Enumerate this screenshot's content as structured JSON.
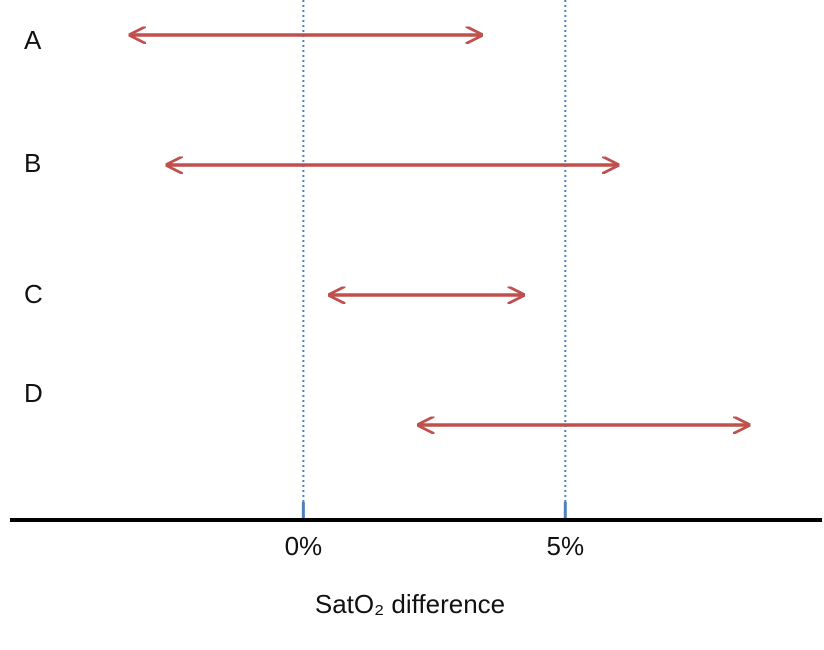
{
  "chart_data": {
    "type": "interval",
    "categories": [
      "A",
      "B",
      "C",
      "D"
    ],
    "lower": [
      -3.3,
      -2.6,
      0.5,
      2.2
    ],
    "upper": [
      3.4,
      6.0,
      4.2,
      8.5
    ],
    "color": "#c0504d",
    "reference_color": "#4f81bd",
    "xlim": [
      -5.6,
      9.9
    ],
    "xticks": [
      {
        "value": 0,
        "label": "0%"
      },
      {
        "value": 5,
        "label": "5%"
      }
    ],
    "xlabel": "SatO₂ difference",
    "grid": true
  }
}
